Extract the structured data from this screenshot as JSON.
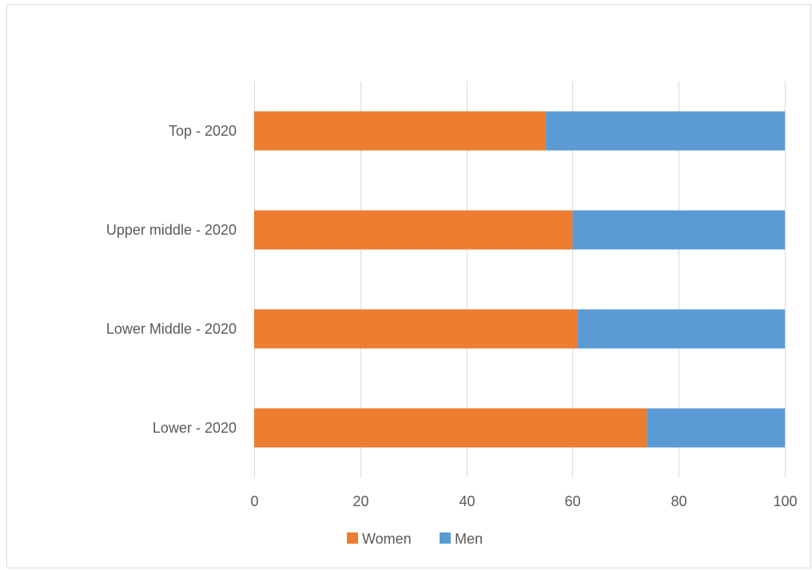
{
  "chart_data": {
    "type": "bar",
    "orientation": "horizontal",
    "stacked": true,
    "title": "",
    "xlabel": "",
    "ylabel": "",
    "categories": [
      "Top - 2020",
      "Upper middle - 2020",
      "Lower Middle - 2020",
      "Lower - 2020"
    ],
    "series": [
      {
        "name": "Women",
        "values": [
          55,
          60,
          61,
          74
        ],
        "color": "#ED7D31"
      },
      {
        "name": "Men",
        "values": [
          45,
          40,
          39,
          26
        ],
        "color": "#5B9BD5"
      }
    ],
    "xlim": [
      0,
      100
    ],
    "xticks": [
      0,
      20,
      40,
      60,
      80,
      100
    ],
    "tick_labels": [
      "0",
      "20",
      "40",
      "60",
      "80",
      "100"
    ],
    "grid": "vertical",
    "legend_position": "bottom",
    "gridline_color": "#d9d9d9"
  }
}
